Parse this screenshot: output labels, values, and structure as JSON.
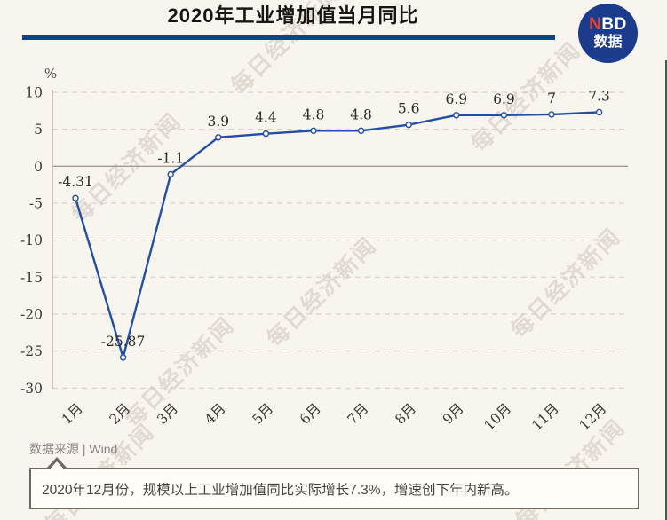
{
  "header": {
    "title": "2020年工业增加值当月同比"
  },
  "logo": {
    "brand_red": "N",
    "brand_rest": "BD",
    "subtitle": "数据"
  },
  "watermark": {
    "text": "每日经济新闻"
  },
  "chart_data": {
    "type": "line",
    "title": "2020年工业增加值当月同比",
    "unit_label": "%",
    "categories": [
      "1月",
      "2月",
      "3月",
      "4月",
      "5月",
      "6月",
      "7月",
      "8月",
      "9月",
      "10月",
      "11月",
      "12月"
    ],
    "values": [
      -4.31,
      -25.87,
      -1.1,
      3.9,
      4.4,
      4.8,
      4.8,
      5.6,
      6.9,
      6.9,
      7,
      7.3
    ],
    "point_labels": [
      "-4.31",
      "-25.87",
      "-1.1",
      "3.9",
      "4.4",
      "4.8",
      "4.8",
      "5.6",
      "6.9",
      "6.9",
      "7",
      "7.3"
    ],
    "yticks": [
      10,
      5,
      0,
      -5,
      -10,
      -15,
      -20,
      -25,
      -30
    ],
    "ylim": [
      -30,
      10
    ],
    "grid": true,
    "legend": "none",
    "line_color": "#2150a2",
    "marker": "open-circle"
  },
  "footer": {
    "source": "数据来源 | Wind",
    "caption": "2020年12月份，规模以上工业增加值同比实际增长7.3%，增速创下年内新高。"
  }
}
